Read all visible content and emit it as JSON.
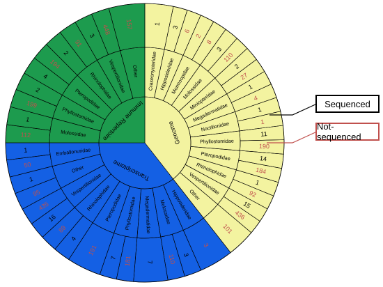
{
  "colors": {
    "immune": "#1d9b4e",
    "genome": "#f3f3a0",
    "transcriptome": "#1460e4",
    "sequenced_text": "#000000",
    "notsequenced_text": "#c0504d",
    "legend_notseq_border": "#c0504d"
  },
  "legend": {
    "sequenced": "Sequenced",
    "not_sequenced": "Not-sequenced"
  },
  "chart_data": {
    "type": "sunburst",
    "rings": [
      "category",
      "family",
      "count"
    ],
    "categories": [
      {
        "name": "Genome",
        "color_key": "genome",
        "families": [
          {
            "name": "Craseonycteridae",
            "counts": [
              {
                "v": "1",
                "s": "sequenced"
              }
            ]
          },
          {
            "name": "Hipposideridae",
            "counts": [
              {
                "v": "3",
                "s": "sequenced"
              },
              {
                "v": "6",
                "s": "not"
              }
            ]
          },
          {
            "name": "Mormoopidae",
            "counts": [
              {
                "v": "2",
                "s": "not"
              },
              {
                "v": "8",
                "s": "not"
              }
            ]
          },
          {
            "name": "Molossidae",
            "counts": [
              {
                "v": "3",
                "s": "sequenced"
              },
              {
                "v": "110",
                "s": "not"
              }
            ]
          },
          {
            "name": "Miniopteridae",
            "counts": [
              {
                "v": "2",
                "s": "sequenced"
              },
              {
                "v": "27",
                "s": "not"
              }
            ]
          },
          {
            "name": "Megadermatidae",
            "counts": [
              {
                "v": "1",
                "s": "sequenced"
              },
              {
                "v": "4",
                "s": "not"
              }
            ]
          },
          {
            "name": "Noctilionidae",
            "counts": [
              {
                "v": "1",
                "s": "sequenced"
              },
              {
                "v": "1",
                "s": "not"
              }
            ]
          },
          {
            "name": "Phyllostomidae",
            "counts": [
              {
                "v": "11",
                "s": "sequenced"
              },
              {
                "v": "190",
                "s": "not"
              }
            ]
          },
          {
            "name": "Pteropodidae",
            "counts": [
              {
                "v": "14",
                "s": "sequenced"
              },
              {
                "v": "184",
                "s": "not"
              }
            ]
          },
          {
            "name": "Rhinolophidae",
            "counts": [
              {
                "v": "1",
                "s": "sequenced"
              },
              {
                "v": "92",
                "s": "not"
              }
            ]
          },
          {
            "name": "Vespertilionidae",
            "counts": [
              {
                "v": "15",
                "s": "sequenced"
              },
              {
                "v": "436",
                "s": "not"
              }
            ]
          },
          {
            "name": "Other",
            "counts": [
              {
                "v": "101",
                "s": "not"
              }
            ]
          }
        ]
      },
      {
        "name": "Transcriptome",
        "color_key": "transcriptome",
        "families": [
          {
            "name": "Hipposideridae",
            "counts": [
              {
                "v": "3",
                "s": "not"
              }
            ]
          },
          {
            "name": "Molossidae",
            "counts": [
              {
                "v": "3",
                "s": "sequenced"
              },
              {
                "v": "110",
                "s": "not"
              }
            ]
          },
          {
            "name": "Megadermatidae",
            "counts": [
              {
                "v": "7",
                "s": "sequenced"
              }
            ]
          },
          {
            "name": "Phyllostomidae",
            "counts": [
              {
                "v": "181",
                "s": "not"
              },
              {
                "v": "7",
                "s": "sequenced"
              }
            ]
          },
          {
            "name": "Pteropodidae",
            "counts": [
              {
                "v": "191",
                "s": "not"
              }
            ]
          },
          {
            "name": "Rhinolophidae",
            "counts": [
              {
                "v": "4",
                "s": "sequenced"
              },
              {
                "v": "89",
                "s": "not"
              }
            ]
          },
          {
            "name": "Vespertilionidae",
            "counts": [
              {
                "v": "16",
                "s": "sequenced"
              },
              {
                "v": "435",
                "s": "not"
              }
            ]
          },
          {
            "name": "Other",
            "counts": [
              {
                "v": "95",
                "s": "not"
              },
              {
                "v": "1",
                "s": "sequenced"
              }
            ]
          },
          {
            "name": "Emballonuridae",
            "counts": [
              {
                "v": "50",
                "s": "not"
              },
              {
                "v": "1",
                "s": "sequenced"
              }
            ]
          }
        ]
      },
      {
        "name": "Immune Repertoire",
        "color_key": "immune",
        "families": [
          {
            "name": "Molossidae",
            "counts": [
              {
                "v": "112",
                "s": "not"
              },
              {
                "v": "1",
                "s": "sequenced"
              }
            ]
          },
          {
            "name": "Phyllostomidae",
            "counts": [
              {
                "v": "199",
                "s": "not"
              },
              {
                "v": "2",
                "s": "sequenced"
              }
            ]
          },
          {
            "name": "Pteropodidae",
            "counts": [
              {
                "v": "4",
                "s": "sequenced"
              },
              {
                "v": "194",
                "s": "not"
              }
            ]
          },
          {
            "name": "Rhinolophidae",
            "counts": [
              {
                "v": "2",
                "s": "sequenced"
              },
              {
                "v": "91",
                "s": "not"
              }
            ]
          },
          {
            "name": "Vespertilionidae",
            "counts": [
              {
                "v": "3",
                "s": "sequenced"
              },
              {
                "v": "448",
                "s": "not"
              }
            ]
          },
          {
            "name": "Other",
            "counts": [
              {
                "v": "157",
                "s": "not"
              }
            ]
          }
        ]
      }
    ]
  }
}
